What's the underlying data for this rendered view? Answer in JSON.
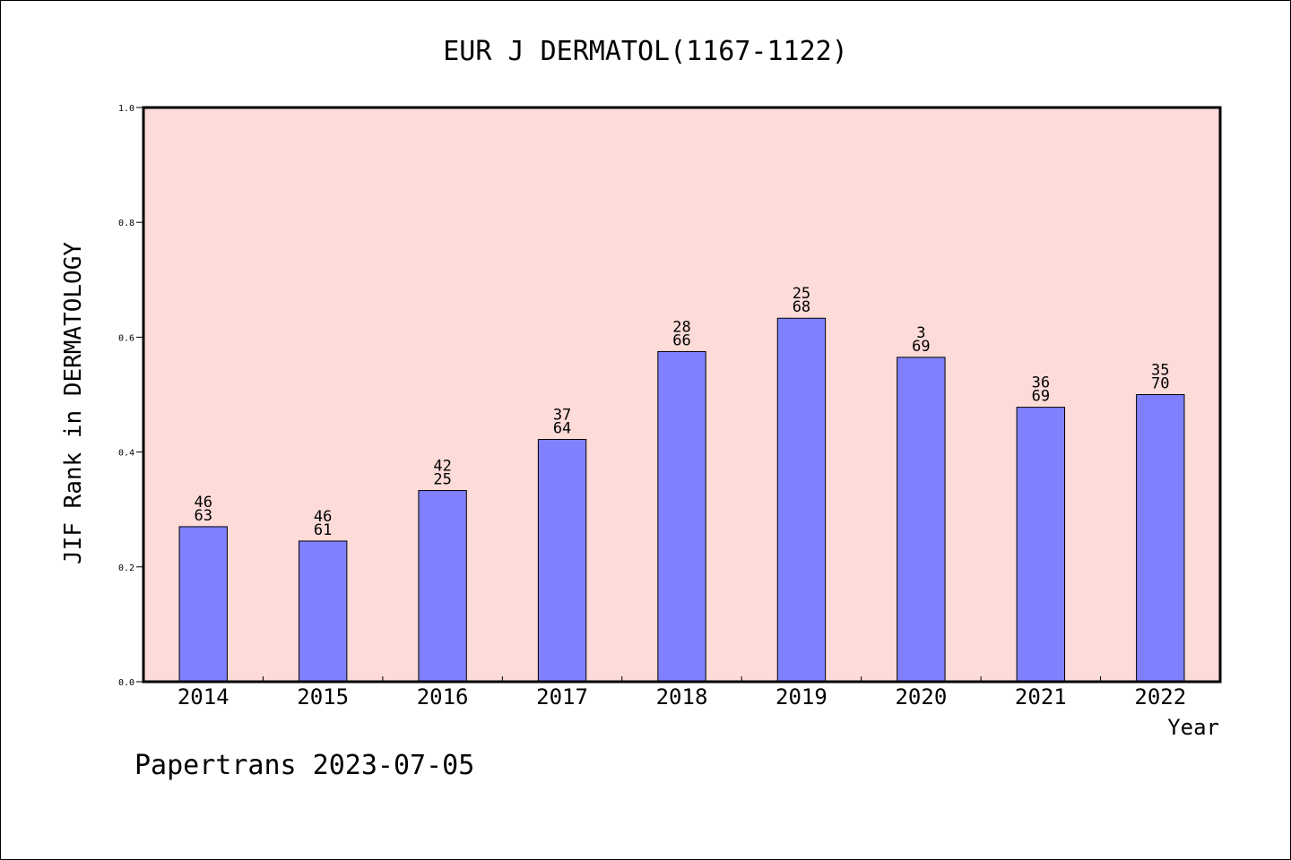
{
  "chart_data": {
    "type": "bar",
    "title": "EUR J DERMATOL(1167-1122)",
    "xlabel": "Year",
    "ylabel": "JIF Rank in DERMATOLOGY",
    "ylim": [
      0,
      1.0
    ],
    "yticks": [
      "0.0",
      "0.2",
      "0.4",
      "0.6",
      "0.8",
      "1.0"
    ],
    "grid": false,
    "colors": {
      "bar": "#8080ff",
      "plot_background": "#fddbd8"
    },
    "categories": [
      "2014",
      "2015",
      "2016",
      "2017",
      "2018",
      "2019",
      "2020",
      "2021",
      "2022"
    ],
    "values": [
      0.27,
      0.245,
      0.333,
      0.422,
      0.575,
      0.633,
      0.565,
      0.478,
      0.5
    ],
    "labels_top": [
      "46",
      "46",
      "42",
      "37",
      "28",
      "25",
      "3",
      "36",
      "35"
    ],
    "labels_bottom": [
      "63",
      "61",
      "25",
      "64",
      "66",
      "68",
      "69",
      "69",
      "70"
    ]
  },
  "footer": "Papertrans 2023-07-05"
}
